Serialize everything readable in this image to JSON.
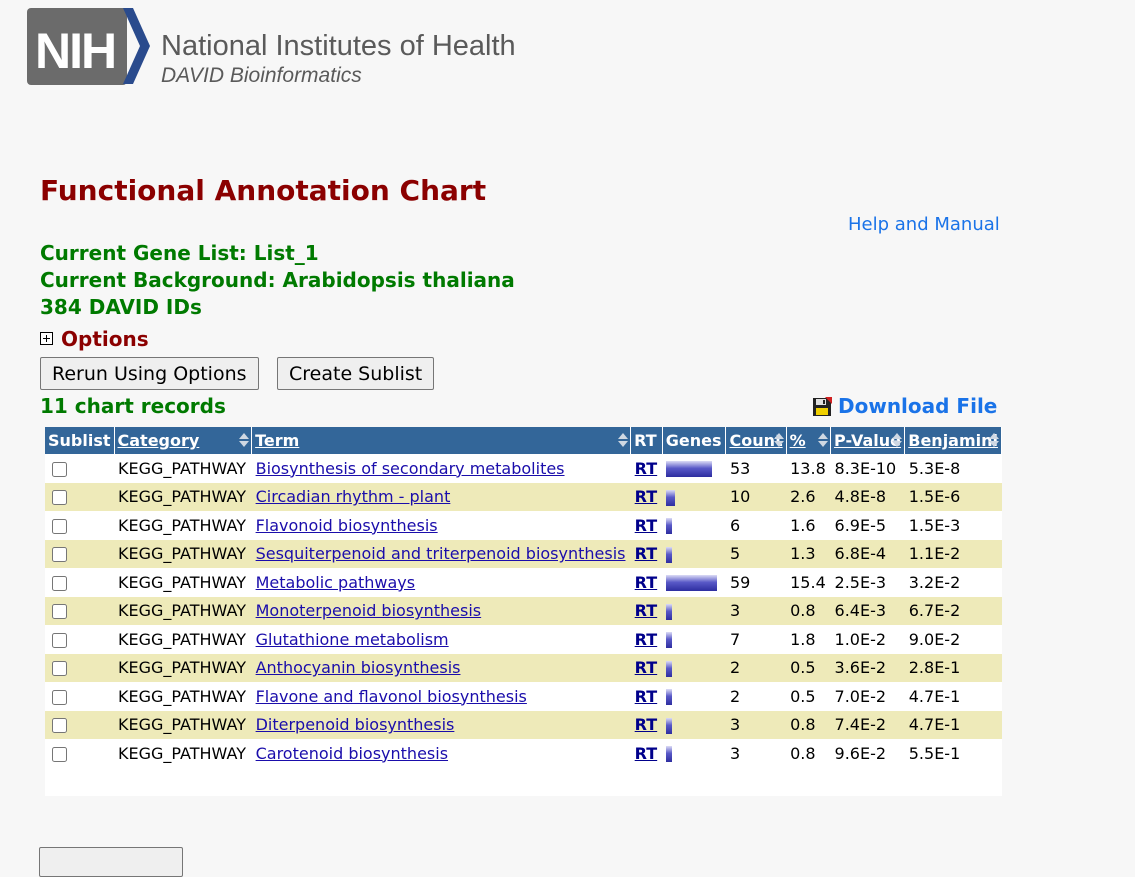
{
  "header": {
    "logo_letters": "NIH",
    "org_name": "National Institutes of Health",
    "sub_name": "DAVID Bioinformatics"
  },
  "page": {
    "title": "Functional Annotation Chart",
    "help_link": "Help and Manual",
    "gene_list": "Current Gene List: List_1",
    "background": "Current Background: Arabidopsis thaliana",
    "ids": "384 DAVID IDs",
    "options_label": "Options",
    "rerun_button": "Rerun Using Options",
    "sublist_button": "Create Sublist",
    "records": "11 chart records",
    "download_label": "Download File"
  },
  "table": {
    "headers": {
      "sublist": "Sublist",
      "category": "Category",
      "term": "Term",
      "rt": "RT",
      "genes": "Genes",
      "count": "Count",
      "percent": "%",
      "pvalue": "P-Value",
      "benjamini": "Benjamini"
    },
    "rows": [
      {
        "category": "KEGG_PATHWAY",
        "term": "Biosynthesis of secondary metabolites",
        "rt": "RT",
        "count": "53",
        "percent": "13.8",
        "pvalue": "8.3E-10",
        "benjamini": "5.3E-8"
      },
      {
        "category": "KEGG_PATHWAY",
        "term": "Circadian rhythm - plant",
        "rt": "RT",
        "count": "10",
        "percent": "2.6",
        "pvalue": "4.8E-8",
        "benjamini": "1.5E-6"
      },
      {
        "category": "KEGG_PATHWAY",
        "term": "Flavonoid biosynthesis",
        "rt": "RT",
        "count": "6",
        "percent": "1.6",
        "pvalue": "6.9E-5",
        "benjamini": "1.5E-3"
      },
      {
        "category": "KEGG_PATHWAY",
        "term": "Sesquiterpenoid and triterpenoid biosynthesis",
        "rt": "RT",
        "count": "5",
        "percent": "1.3",
        "pvalue": "6.8E-4",
        "benjamini": "1.1E-2"
      },
      {
        "category": "KEGG_PATHWAY",
        "term": "Metabolic pathways",
        "rt": "RT",
        "count": "59",
        "percent": "15.4",
        "pvalue": "2.5E-3",
        "benjamini": "3.2E-2"
      },
      {
        "category": "KEGG_PATHWAY",
        "term": "Monoterpenoid biosynthesis",
        "rt": "RT",
        "count": "3",
        "percent": "0.8",
        "pvalue": "6.4E-3",
        "benjamini": "6.7E-2"
      },
      {
        "category": "KEGG_PATHWAY",
        "term": "Glutathione metabolism",
        "rt": "RT",
        "count": "7",
        "percent": "1.8",
        "pvalue": "1.0E-2",
        "benjamini": "9.0E-2"
      },
      {
        "category": "KEGG_PATHWAY",
        "term": "Anthocyanin biosynthesis",
        "rt": "RT",
        "count": "2",
        "percent": "0.5",
        "pvalue": "3.6E-2",
        "benjamini": "2.8E-1"
      },
      {
        "category": "KEGG_PATHWAY",
        "term": "Flavone and flavonol biosynthesis",
        "rt": "RT",
        "count": "2",
        "percent": "0.5",
        "pvalue": "7.0E-2",
        "benjamini": "4.7E-1"
      },
      {
        "category": "KEGG_PATHWAY",
        "term": "Diterpenoid biosynthesis",
        "rt": "RT",
        "count": "3",
        "percent": "0.8",
        "pvalue": "7.4E-2",
        "benjamini": "4.7E-1"
      },
      {
        "category": "KEGG_PATHWAY",
        "term": "Carotenoid biosynthesis",
        "rt": "RT",
        "count": "3",
        "percent": "0.8",
        "pvalue": "9.6E-2",
        "benjamini": "5.5E-1"
      }
    ]
  },
  "colors": {
    "title_red": "#8b0000",
    "info_green": "#007a00",
    "header_blue": "#336699",
    "stripe": "#eeeab9",
    "link_blue": "#1a73e8"
  },
  "icons": {
    "options_toggle": "plus-box-icon",
    "download": "floppy-disk-icon",
    "sort": "sort-arrows-icon"
  }
}
